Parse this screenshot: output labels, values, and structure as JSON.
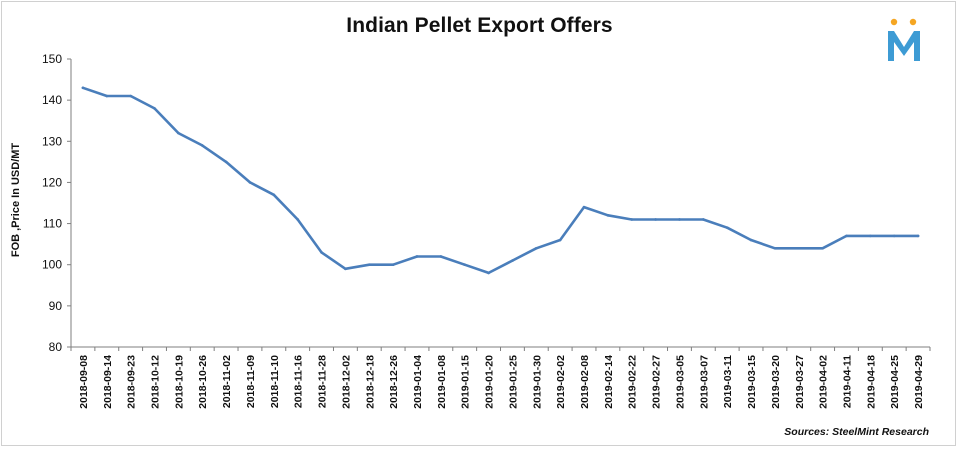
{
  "chart_data": {
    "type": "line",
    "title": "Indian Pellet Export Offers",
    "ylabel": "FOB ,Price In USD/MT",
    "xlabel": "",
    "ylim": [
      80,
      150
    ],
    "yticks": [
      80,
      90,
      100,
      110,
      120,
      130,
      140,
      150
    ],
    "grid": false,
    "legend": "none",
    "line_color": "#4A7EBB",
    "categories": [
      "2018-09-08",
      "2018-09-14",
      "2018-09-23",
      "2018-10-12",
      "2018-10-19",
      "2018-10-26",
      "2018-11-02",
      "2018-11-09",
      "2018-11-10",
      "2018-11-16",
      "2018-11-28",
      "2018-12-02",
      "2018-12-18",
      "2018-12-26",
      "2019-01-04",
      "2019-01-08",
      "2019-01-15",
      "2019-01-20",
      "2019-01-25",
      "2019-01-30",
      "2019-02-02",
      "2019-02-08",
      "2019-02-14",
      "2019-02-22",
      "2019-02-27",
      "2019-03-05",
      "2019-03-07",
      "2019-03-11",
      "2019-03-15",
      "2019-03-20",
      "2019-03-27",
      "2019-04-02",
      "2019-04-11",
      "2019-04-18",
      "2019-04-25",
      "2019-04-29"
    ],
    "series": [
      {
        "values": [
          143,
          141,
          141,
          138,
          132,
          129,
          125,
          120,
          117,
          111,
          103,
          99,
          100,
          100,
          102,
          102,
          100,
          98,
          101,
          104,
          106,
          114,
          112,
          111,
          111,
          111,
          111,
          109,
          106,
          104,
          104,
          104,
          107,
          107,
          107,
          107
        ]
      }
    ],
    "source": "Sources: SteelMint Research"
  },
  "logo": {
    "letter": "M",
    "color": "#3D9BD4",
    "accent": "#F5A623"
  }
}
